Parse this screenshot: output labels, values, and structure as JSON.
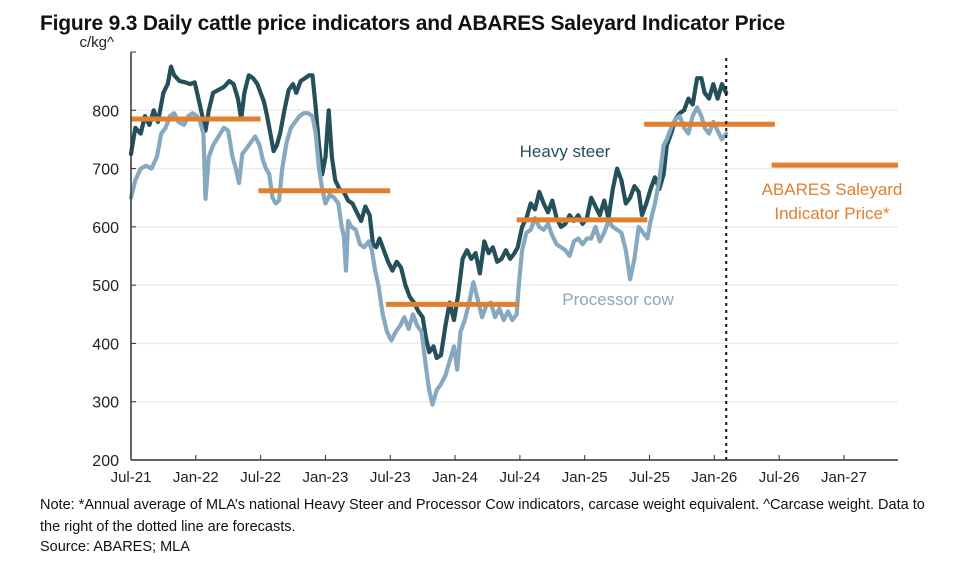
{
  "title": "Figure 9.3 Daily cattle price indicators and ABARES Saleyard Indicator Price",
  "note": "Note: *Annual average of MLA’s national Heavy Steer and Processor Cow indicators, carcase weight equivalent. ^Carcase weight. Data to the right of the dotted line are forecasts.",
  "source": "Source: ABARES; MLA",
  "colors": {
    "heavy_steer": "#23505a",
    "processor_cow": "#86a9bf",
    "abares": "#e07f2e",
    "axis": "#333333",
    "grid": "#ececec"
  },
  "chart_data": {
    "type": "line",
    "title": "Figure 9.3 Daily cattle price indicators and ABARES Saleyard Indicator Price",
    "xlabel": "",
    "ylabel": "c/kg^",
    "ylim": [
      200,
      900
    ],
    "yticks": [
      200,
      300,
      400,
      500,
      600,
      700,
      800
    ],
    "x_unit": "months since Jul-21",
    "xlim": [
      0,
      71
    ],
    "xticks": [
      {
        "m": 0,
        "label": "Jul-21"
      },
      {
        "m": 6,
        "label": "Jan-22"
      },
      {
        "m": 12,
        "label": "Jul-22"
      },
      {
        "m": 18,
        "label": "Jan-23"
      },
      {
        "m": 24,
        "label": "Jul-23"
      },
      {
        "m": 30,
        "label": "Jan-24"
      },
      {
        "m": 36,
        "label": "Jul-24"
      },
      {
        "m": 42,
        "label": "Jan-25"
      },
      {
        "m": 48,
        "label": "Jul-25"
      },
      {
        "m": 54,
        "label": "Jan-26"
      },
      {
        "m": 60,
        "label": "Jul-26"
      },
      {
        "m": 66,
        "label": "Jan-27"
      }
    ],
    "grid": true,
    "forecast_divider_month": 55.1,
    "series": [
      {
        "name": "Heavy steer",
        "label": "Heavy steer",
        "points": [
          [
            0,
            725
          ],
          [
            0.4,
            770
          ],
          [
            0.9,
            760
          ],
          [
            1.3,
            790
          ],
          [
            1.7,
            775
          ],
          [
            2.1,
            800
          ],
          [
            2.5,
            780
          ],
          [
            3,
            830
          ],
          [
            3.4,
            845
          ],
          [
            3.7,
            875
          ],
          [
            4,
            860
          ],
          [
            4.5,
            850
          ],
          [
            5,
            848
          ],
          [
            5.5,
            845
          ],
          [
            5.9,
            848
          ],
          [
            6.3,
            815
          ],
          [
            6.6,
            790
          ],
          [
            6.9,
            765
          ],
          [
            7.2,
            800
          ],
          [
            7.6,
            830
          ],
          [
            8.1,
            835
          ],
          [
            8.6,
            840
          ],
          [
            9.1,
            850
          ],
          [
            9.5,
            845
          ],
          [
            9.9,
            820
          ],
          [
            10.2,
            785
          ],
          [
            10.5,
            830
          ],
          [
            10.9,
            860
          ],
          [
            11.3,
            855
          ],
          [
            11.7,
            845
          ],
          [
            12,
            830
          ],
          [
            12.3,
            815
          ],
          [
            12.6,
            790
          ],
          [
            12.9,
            760
          ],
          [
            13.2,
            730
          ],
          [
            13.5,
            740
          ],
          [
            13.8,
            760
          ],
          [
            14.2,
            800
          ],
          [
            14.6,
            835
          ],
          [
            15,
            845
          ],
          [
            15.3,
            830
          ],
          [
            15.7,
            850
          ],
          [
            16.1,
            855
          ],
          [
            16.5,
            860
          ],
          [
            16.8,
            860
          ],
          [
            17.1,
            805
          ],
          [
            17.4,
            740
          ],
          [
            17.7,
            690
          ],
          [
            18,
            720
          ],
          [
            18.3,
            800
          ],
          [
            18.6,
            720
          ],
          [
            18.9,
            680
          ],
          [
            19.3,
            665
          ],
          [
            19.7,
            660
          ],
          [
            20.1,
            645
          ],
          [
            20.5,
            640
          ],
          [
            20.9,
            625
          ],
          [
            21.3,
            610
          ],
          [
            21.7,
            635
          ],
          [
            22.1,
            620
          ],
          [
            22.4,
            570
          ],
          [
            22.7,
            565
          ],
          [
            23,
            580
          ],
          [
            23.4,
            560
          ],
          [
            23.8,
            540
          ],
          [
            24.2,
            525
          ],
          [
            24.6,
            540
          ],
          [
            25,
            530
          ],
          [
            25.4,
            500
          ],
          [
            25.8,
            480
          ],
          [
            26.2,
            470
          ],
          [
            26.6,
            455
          ],
          [
            27,
            445
          ],
          [
            27.3,
            410
          ],
          [
            27.6,
            385
          ],
          [
            28,
            395
          ],
          [
            28.3,
            375
          ],
          [
            28.7,
            380
          ],
          [
            29.1,
            430
          ],
          [
            29.5,
            470
          ],
          [
            29.9,
            440
          ],
          [
            30.3,
            485
          ],
          [
            30.7,
            545
          ],
          [
            31.1,
            560
          ],
          [
            31.5,
            545
          ],
          [
            31.9,
            555
          ],
          [
            32.3,
            520
          ],
          [
            32.7,
            575
          ],
          [
            33.1,
            555
          ],
          [
            33.5,
            565
          ],
          [
            33.9,
            540
          ],
          [
            34.3,
            545
          ],
          [
            34.7,
            560
          ],
          [
            35.1,
            545
          ],
          [
            35.5,
            555
          ],
          [
            35.8,
            565
          ],
          [
            36.2,
            600
          ],
          [
            36.6,
            615
          ],
          [
            37,
            640
          ],
          [
            37.4,
            630
          ],
          [
            37.8,
            660
          ],
          [
            38.2,
            640
          ],
          [
            38.6,
            625
          ],
          [
            39,
            645
          ],
          [
            39.4,
            615
          ],
          [
            39.8,
            600
          ],
          [
            40.2,
            605
          ],
          [
            40.6,
            620
          ],
          [
            41,
            610
          ],
          [
            41.4,
            620
          ],
          [
            41.8,
            605
          ],
          [
            42.2,
            615
          ],
          [
            42.6,
            650
          ],
          [
            43,
            635
          ],
          [
            43.4,
            620
          ],
          [
            43.8,
            645
          ],
          [
            44.2,
            615
          ],
          [
            44.6,
            665
          ],
          [
            45,
            700
          ],
          [
            45.4,
            680
          ],
          [
            45.8,
            640
          ],
          [
            46.2,
            650
          ],
          [
            46.6,
            670
          ],
          [
            47,
            660
          ],
          [
            47.3,
            620
          ],
          [
            47.7,
            640
          ],
          [
            48.1,
            665
          ],
          [
            48.5,
            685
          ],
          [
            48.9,
            665
          ],
          [
            49.3,
            690
          ],
          [
            49.6,
            740
          ],
          [
            50,
            760
          ],
          [
            50.4,
            785
          ],
          [
            50.8,
            795
          ],
          [
            51.2,
            800
          ],
          [
            51.6,
            820
          ],
          [
            52,
            810
          ],
          [
            52.4,
            855
          ],
          [
            52.8,
            855
          ],
          [
            53.1,
            830
          ],
          [
            53.5,
            820
          ],
          [
            53.9,
            845
          ],
          [
            54.3,
            820
          ],
          [
            54.7,
            845
          ],
          [
            55.1,
            830
          ]
        ]
      },
      {
        "name": "Processor cow",
        "label": "Processor cow",
        "points": [
          [
            0,
            650
          ],
          [
            0.4,
            680
          ],
          [
            0.9,
            700
          ],
          [
            1.4,
            705
          ],
          [
            1.9,
            700
          ],
          [
            2.4,
            720
          ],
          [
            2.8,
            760
          ],
          [
            3.2,
            770
          ],
          [
            3.6,
            790
          ],
          [
            4,
            795
          ],
          [
            4.4,
            780
          ],
          [
            4.9,
            775
          ],
          [
            5.3,
            790
          ],
          [
            5.7,
            795
          ],
          [
            6.1,
            790
          ],
          [
            6.4,
            780
          ],
          [
            6.7,
            760
          ],
          [
            6.9,
            648
          ],
          [
            7.2,
            720
          ],
          [
            7.6,
            740
          ],
          [
            8.1,
            755
          ],
          [
            8.6,
            770
          ],
          [
            9,
            765
          ],
          [
            9.4,
            720
          ],
          [
            9.7,
            700
          ],
          [
            10,
            675
          ],
          [
            10.3,
            725
          ],
          [
            10.7,
            735
          ],
          [
            11.1,
            745
          ],
          [
            11.5,
            755
          ],
          [
            11.9,
            740
          ],
          [
            12.2,
            715
          ],
          [
            12.5,
            700
          ],
          [
            12.8,
            690
          ],
          [
            13.1,
            650
          ],
          [
            13.4,
            640
          ],
          [
            13.7,
            645
          ],
          [
            14,
            700
          ],
          [
            14.4,
            745
          ],
          [
            14.8,
            770
          ],
          [
            15.2,
            780
          ],
          [
            15.6,
            790
          ],
          [
            16,
            795
          ],
          [
            16.4,
            795
          ],
          [
            16.8,
            790
          ],
          [
            17.1,
            760
          ],
          [
            17.4,
            700
          ],
          [
            17.7,
            665
          ],
          [
            18,
            640
          ],
          [
            18.4,
            655
          ],
          [
            18.8,
            650
          ],
          [
            19.2,
            640
          ],
          [
            19.5,
            600
          ],
          [
            19.7,
            585
          ],
          [
            19.9,
            525
          ],
          [
            20.1,
            610
          ],
          [
            20.4,
            600
          ],
          [
            20.8,
            595
          ],
          [
            21.2,
            570
          ],
          [
            21.6,
            565
          ],
          [
            22,
            575
          ],
          [
            22.3,
            560
          ],
          [
            22.6,
            525
          ],
          [
            22.9,
            500
          ],
          [
            23.3,
            450
          ],
          [
            23.7,
            420
          ],
          [
            24.1,
            405
          ],
          [
            24.5,
            420
          ],
          [
            24.9,
            430
          ],
          [
            25.3,
            445
          ],
          [
            25.7,
            425
          ],
          [
            26.1,
            450
          ],
          [
            26.5,
            430
          ],
          [
            26.9,
            420
          ],
          [
            27.3,
            360
          ],
          [
            27.6,
            320
          ],
          [
            27.9,
            295
          ],
          [
            28.3,
            320
          ],
          [
            28.7,
            330
          ],
          [
            29.1,
            345
          ],
          [
            29.5,
            370
          ],
          [
            29.9,
            395
          ],
          [
            30.2,
            355
          ],
          [
            30.5,
            420
          ],
          [
            30.9,
            440
          ],
          [
            31.3,
            470
          ],
          [
            31.7,
            505
          ],
          [
            32.1,
            475
          ],
          [
            32.5,
            445
          ],
          [
            32.9,
            465
          ],
          [
            33.3,
            470
          ],
          [
            33.7,
            445
          ],
          [
            34.1,
            460
          ],
          [
            34.5,
            440
          ],
          [
            34.9,
            455
          ],
          [
            35.3,
            440
          ],
          [
            35.7,
            450
          ],
          [
            35.9,
            500
          ],
          [
            36.2,
            560
          ],
          [
            36.6,
            590
          ],
          [
            37,
            595
          ],
          [
            37.4,
            615
          ],
          [
            37.8,
            600
          ],
          [
            38.2,
            595
          ],
          [
            38.6,
            605
          ],
          [
            39,
            585
          ],
          [
            39.4,
            570
          ],
          [
            39.8,
            565
          ],
          [
            40.2,
            560
          ],
          [
            40.6,
            550
          ],
          [
            41,
            575
          ],
          [
            41.4,
            580
          ],
          [
            41.8,
            570
          ],
          [
            42.2,
            580
          ],
          [
            42.6,
            580
          ],
          [
            43,
            600
          ],
          [
            43.4,
            575
          ],
          [
            43.8,
            590
          ],
          [
            44.2,
            610
          ],
          [
            44.6,
            600
          ],
          [
            45,
            595
          ],
          [
            45.4,
            590
          ],
          [
            45.8,
            560
          ],
          [
            46.2,
            510
          ],
          [
            46.6,
            545
          ],
          [
            47,
            600
          ],
          [
            47.4,
            590
          ],
          [
            47.8,
            580
          ],
          [
            48.1,
            610
          ],
          [
            48.5,
            640
          ],
          [
            48.9,
            680
          ],
          [
            49.3,
            740
          ],
          [
            49.6,
            750
          ],
          [
            50,
            770
          ],
          [
            50.4,
            785
          ],
          [
            50.8,
            790
          ],
          [
            51.2,
            770
          ],
          [
            51.6,
            760
          ],
          [
            52,
            790
          ],
          [
            52.4,
            805
          ],
          [
            52.8,
            790
          ],
          [
            53.1,
            770
          ],
          [
            53.5,
            760
          ],
          [
            53.9,
            780
          ],
          [
            54.3,
            765
          ],
          [
            54.7,
            750
          ],
          [
            55.1,
            760
          ]
        ]
      },
      {
        "name": "ABARES Saleyard Indicator Price*",
        "label": "ABARES Saleyard Indicator Price*",
        "segments": [
          {
            "from": 0,
            "to": 12,
            "value": 785
          },
          {
            "from": 11.8,
            "to": 24,
            "value": 662
          },
          {
            "from": 23.6,
            "to": 35.9,
            "value": 467
          },
          {
            "from": 35.7,
            "to": 47.8,
            "value": 612
          },
          {
            "from": 47.5,
            "to": 59.6,
            "value": 776
          },
          {
            "from": 59.3,
            "to": 71,
            "value": 706
          }
        ]
      }
    ]
  }
}
